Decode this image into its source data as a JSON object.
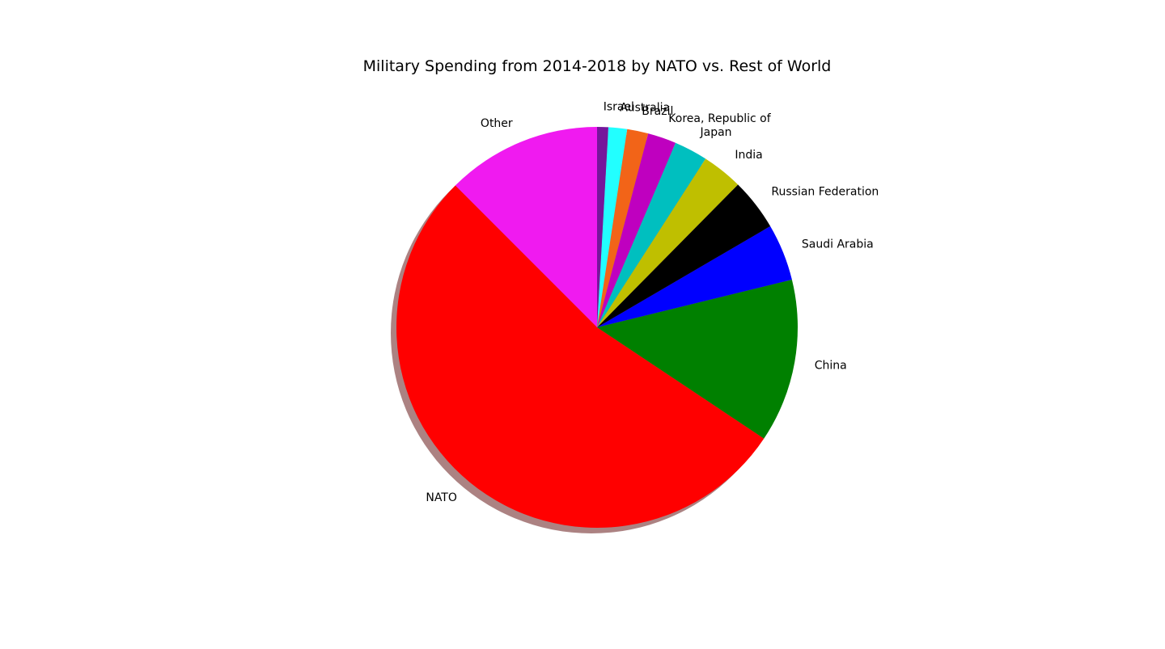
{
  "chart_data": {
    "type": "pie",
    "title": "Military Spending from 2014-2018 by NATO vs. Rest of World",
    "start_angle_deg": 90,
    "direction": "counterclockwise",
    "shadow": true,
    "slices": [
      {
        "label": "Other",
        "value": 12.5,
        "color": "#f01af0"
      },
      {
        "label": "NATO",
        "value": 53.2,
        "color": "#ff0000"
      },
      {
        "label": "China",
        "value": 13.2,
        "color": "#008000"
      },
      {
        "label": "Saudi Arabia",
        "value": 4.6,
        "color": "#0000ff"
      },
      {
        "label": "Russian Federation",
        "value": 4.2,
        "color": "#000000"
      },
      {
        "label": "India",
        "value": 3.3,
        "color": "#bfbf00"
      },
      {
        "label": "Japan",
        "value": 2.7,
        "color": "#00bfbf"
      },
      {
        "label": "Korea, Republic of",
        "value": 2.3,
        "color": "#bf00bf"
      },
      {
        "label": "Brazil",
        "value": 1.7,
        "color": "#f26418"
      },
      {
        "label": "Australia",
        "value": 1.5,
        "color": "#22ffff"
      },
      {
        "label": "Israel",
        "value": 0.9,
        "color": "#75169b"
      }
    ]
  }
}
